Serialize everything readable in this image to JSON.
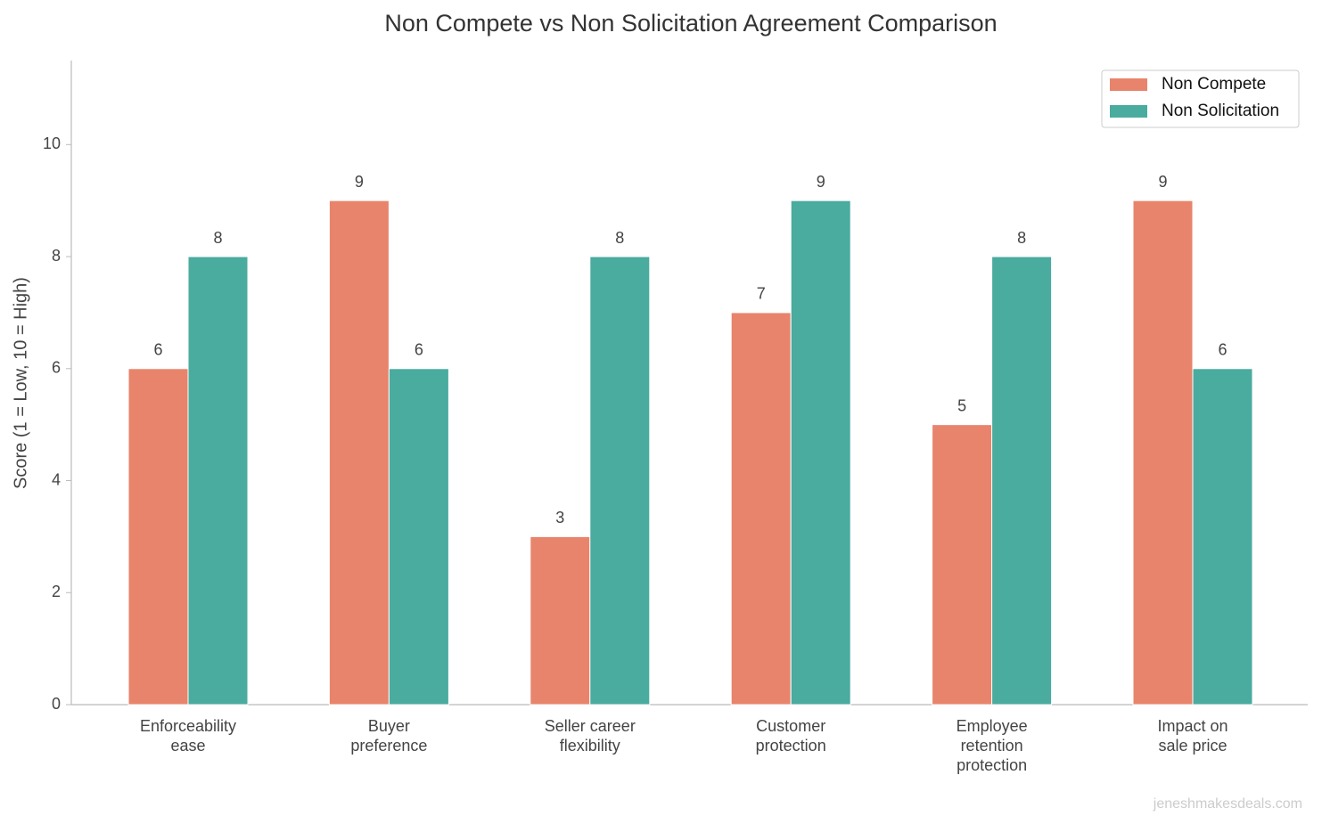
{
  "chart_data": {
    "type": "bar",
    "title": "Non Compete vs Non Solicitation Agreement Comparison",
    "ylabel": "Score (1 = Low, 10 = High)",
    "categories": [
      "Enforceability\nease",
      "Buyer\npreference",
      "Seller career\nflexibility",
      "Customer\nprotection",
      "Employee\nretention\nprotection",
      "Impact on\nsale price"
    ],
    "series": [
      {
        "name": "Non Compete",
        "color": "#e8846b",
        "values": [
          6,
          9,
          3,
          7,
          5,
          9
        ]
      },
      {
        "name": "Non Solicitation",
        "color": "#4aab9f",
        "values": [
          8,
          6,
          8,
          9,
          8,
          6
        ]
      }
    ],
    "ylim": [
      0,
      11.5
    ],
    "yticks": [
      0,
      2,
      4,
      6,
      8,
      10
    ],
    "legend": "upper right",
    "grid": false,
    "watermark": "jeneshmakesdeals.com"
  }
}
